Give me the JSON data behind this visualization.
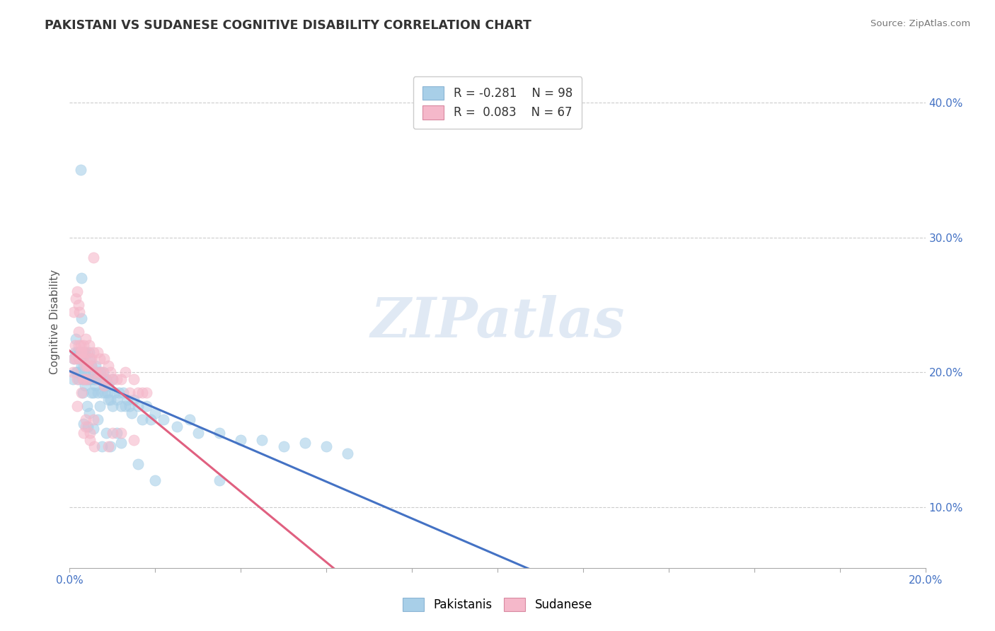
{
  "title": "PAKISTANI VS SUDANESE COGNITIVE DISABILITY CORRELATION CHART",
  "source": "Source: ZipAtlas.com",
  "ylabel": "Cognitive Disability",
  "xlim": [
    0.0,
    0.2
  ],
  "ylim": [
    0.055,
    0.42
  ],
  "yticks": [
    0.1,
    0.2,
    0.3,
    0.4
  ],
  "yticklabels": [
    "10.0%",
    "20.0%",
    "30.0%",
    "40.0%"
  ],
  "legend_r1": "R = -0.281",
  "legend_n1": "N = 98",
  "legend_r2": "R =  0.083",
  "legend_n2": "N = 67",
  "blue_color": "#a8cfe8",
  "pink_color": "#f5b8ca",
  "blue_line_color": "#4472c4",
  "pink_line_color": "#e06080",
  "watermark": "ZIPatlas",
  "pakistani_x": [
    0.0008,
    0.001,
    0.0012,
    0.0015,
    0.0015,
    0.0018,
    0.002,
    0.002,
    0.0022,
    0.0025,
    0.0025,
    0.0028,
    0.003,
    0.003,
    0.0032,
    0.0035,
    0.0035,
    0.0038,
    0.004,
    0.004,
    0.0042,
    0.0045,
    0.0045,
    0.0048,
    0.005,
    0.005,
    0.0055,
    0.0055,
    0.0058,
    0.006,
    0.006,
    0.0065,
    0.0065,
    0.007,
    0.0072,
    0.0075,
    0.0078,
    0.008,
    0.0082,
    0.0085,
    0.0088,
    0.009,
    0.0095,
    0.01,
    0.0105,
    0.011,
    0.0115,
    0.012,
    0.0125,
    0.013,
    0.0135,
    0.014,
    0.0145,
    0.015,
    0.016,
    0.017,
    0.018,
    0.019,
    0.02,
    0.022,
    0.025,
    0.028,
    0.03,
    0.035,
    0.04,
    0.045,
    0.05,
    0.055,
    0.06,
    0.065,
    0.003,
    0.004,
    0.005,
    0.006,
    0.007,
    0.008,
    0.009,
    0.01,
    0.0025,
    0.0035,
    0.0025,
    0.0045,
    0.0028,
    0.0042,
    0.0065,
    0.0085,
    0.0095,
    0.0038,
    0.011,
    0.0028,
    0.0018,
    0.0055,
    0.0032,
    0.0075,
    0.012,
    0.016,
    0.02,
    0.035
  ],
  "pakistani_y": [
    0.195,
    0.21,
    0.215,
    0.225,
    0.2,
    0.215,
    0.21,
    0.195,
    0.215,
    0.2,
    0.215,
    0.205,
    0.21,
    0.195,
    0.205,
    0.2,
    0.215,
    0.195,
    0.205,
    0.195,
    0.2,
    0.215,
    0.195,
    0.21,
    0.205,
    0.195,
    0.2,
    0.185,
    0.195,
    0.205,
    0.19,
    0.2,
    0.185,
    0.2,
    0.195,
    0.185,
    0.2,
    0.195,
    0.185,
    0.195,
    0.185,
    0.19,
    0.18,
    0.195,
    0.185,
    0.18,
    0.185,
    0.175,
    0.185,
    0.175,
    0.18,
    0.175,
    0.17,
    0.18,
    0.175,
    0.165,
    0.175,
    0.165,
    0.17,
    0.165,
    0.16,
    0.165,
    0.155,
    0.155,
    0.15,
    0.15,
    0.145,
    0.148,
    0.145,
    0.14,
    0.185,
    0.175,
    0.185,
    0.195,
    0.175,
    0.19,
    0.18,
    0.175,
    0.215,
    0.19,
    0.35,
    0.17,
    0.27,
    0.16,
    0.165,
    0.155,
    0.145,
    0.205,
    0.155,
    0.24,
    0.2,
    0.158,
    0.162,
    0.145,
    0.148,
    0.132,
    0.12,
    0.12
  ],
  "sudanese_x": [
    0.0008,
    0.001,
    0.0012,
    0.0015,
    0.0018,
    0.002,
    0.0022,
    0.0025,
    0.0028,
    0.003,
    0.0032,
    0.0035,
    0.0038,
    0.004,
    0.0042,
    0.0045,
    0.0048,
    0.005,
    0.0055,
    0.006,
    0.0065,
    0.007,
    0.0075,
    0.008,
    0.0085,
    0.009,
    0.0095,
    0.01,
    0.011,
    0.012,
    0.013,
    0.014,
    0.015,
    0.016,
    0.017,
    0.018,
    0.002,
    0.003,
    0.004,
    0.005,
    0.0025,
    0.0035,
    0.0028,
    0.0042,
    0.0015,
    0.0022,
    0.0032,
    0.0018,
    0.0038,
    0.0048,
    0.0055,
    0.001,
    0.002,
    0.003,
    0.0065,
    0.008,
    0.01,
    0.012,
    0.015,
    0.0055,
    0.007,
    0.009,
    0.0018,
    0.0028,
    0.0038,
    0.0048,
    0.0058
  ],
  "sudanese_y": [
    0.2,
    0.21,
    0.22,
    0.255,
    0.26,
    0.25,
    0.245,
    0.22,
    0.215,
    0.21,
    0.22,
    0.205,
    0.225,
    0.215,
    0.205,
    0.22,
    0.21,
    0.205,
    0.215,
    0.2,
    0.215,
    0.21,
    0.2,
    0.21,
    0.195,
    0.205,
    0.2,
    0.195,
    0.195,
    0.195,
    0.2,
    0.185,
    0.195,
    0.185,
    0.185,
    0.185,
    0.23,
    0.215,
    0.205,
    0.21,
    0.215,
    0.195,
    0.215,
    0.195,
    0.21,
    0.21,
    0.155,
    0.175,
    0.165,
    0.155,
    0.165,
    0.245,
    0.22,
    0.195,
    0.195,
    0.19,
    0.155,
    0.155,
    0.15,
    0.285,
    0.2,
    0.145,
    0.195,
    0.185,
    0.16,
    0.15,
    0.145
  ]
}
